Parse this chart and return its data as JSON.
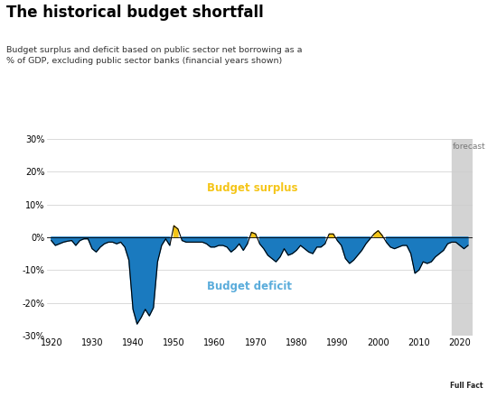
{
  "title": "The historical budget shortfall",
  "subtitle": "Budget surplus and deficit based on public sector net borrowing as a\n% of GDP, excluding public sector banks (financial years shown)",
  "forecast_label": "forecast",
  "forecast_start": 2018,
  "forecast_end": 2023,
  "xlim": [
    1919,
    2023
  ],
  "ylim": [
    -30,
    30
  ],
  "yticks": [
    -30,
    -20,
    -10,
    0,
    10,
    20,
    30
  ],
  "ytick_labels": [
    "-30%",
    "-20%",
    "-10%",
    "0%",
    "10%",
    "20%",
    "30%"
  ],
  "xticks": [
    1920,
    1930,
    1940,
    1950,
    1960,
    1970,
    1980,
    1990,
    2000,
    2010,
    2020
  ],
  "surplus_label": "Budget surplus",
  "deficit_label": "Budget deficit",
  "surplus_color": "#f5c518",
  "deficit_color": "#1a7abf",
  "deficit_label_color": "#5aacdb",
  "line_color": "#000000",
  "forecast_color": "#d3d3d3",
  "background_color": "#ffffff",
  "footer_bg": "#1a1a1a",
  "footer_text_color": "#ffffff",
  "years": [
    1920,
    1921,
    1922,
    1923,
    1924,
    1925,
    1926,
    1927,
    1928,
    1929,
    1930,
    1931,
    1932,
    1933,
    1934,
    1935,
    1936,
    1937,
    1938,
    1939,
    1940,
    1941,
    1942,
    1943,
    1944,
    1945,
    1946,
    1947,
    1948,
    1949,
    1950,
    1951,
    1952,
    1953,
    1954,
    1955,
    1956,
    1957,
    1958,
    1959,
    1960,
    1961,
    1962,
    1963,
    1964,
    1965,
    1966,
    1967,
    1968,
    1969,
    1970,
    1971,
    1972,
    1973,
    1974,
    1975,
    1976,
    1977,
    1978,
    1979,
    1980,
    1981,
    1982,
    1983,
    1984,
    1985,
    1986,
    1987,
    1988,
    1989,
    1990,
    1991,
    1992,
    1993,
    1994,
    1995,
    1996,
    1997,
    1998,
    1999,
    2000,
    2001,
    2002,
    2003,
    2004,
    2005,
    2006,
    2007,
    2008,
    2009,
    2010,
    2011,
    2012,
    2013,
    2014,
    2015,
    2016,
    2017,
    2018,
    2019,
    2020,
    2021,
    2022
  ],
  "values": [
    -1.0,
    -2.5,
    -2.0,
    -1.5,
    -1.2,
    -1.0,
    -2.5,
    -1.0,
    -0.5,
    -0.5,
    -3.5,
    -4.5,
    -3.0,
    -2.0,
    -1.5,
    -1.5,
    -2.0,
    -1.5,
    -3.0,
    -7.0,
    -22.0,
    -26.5,
    -24.5,
    -22.0,
    -24.0,
    -21.5,
    -7.5,
    -2.5,
    -0.5,
    -2.5,
    3.5,
    2.5,
    -1.0,
    -1.5,
    -1.5,
    -1.5,
    -1.5,
    -1.5,
    -2.0,
    -3.0,
    -3.0,
    -2.5,
    -2.5,
    -3.0,
    -4.5,
    -3.5,
    -2.0,
    -4.0,
    -2.0,
    1.5,
    1.0,
    -2.0,
    -3.5,
    -5.5,
    -6.5,
    -7.5,
    -6.0,
    -3.5,
    -5.5,
    -5.0,
    -4.0,
    -2.5,
    -3.5,
    -4.5,
    -5.0,
    -3.0,
    -3.0,
    -2.0,
    1.0,
    1.0,
    -1.0,
    -2.5,
    -6.5,
    -8.0,
    -7.0,
    -5.5,
    -4.0,
    -2.0,
    -0.5,
    1.0,
    2.0,
    0.5,
    -1.5,
    -3.0,
    -3.5,
    -3.0,
    -2.5,
    -2.5,
    -5.0,
    -11.0,
    -10.0,
    -7.5,
    -8.0,
    -7.5,
    -6.0,
    -5.0,
    -4.0,
    -2.0,
    -1.5,
    -1.5,
    -2.5,
    -3.5,
    -2.5
  ]
}
